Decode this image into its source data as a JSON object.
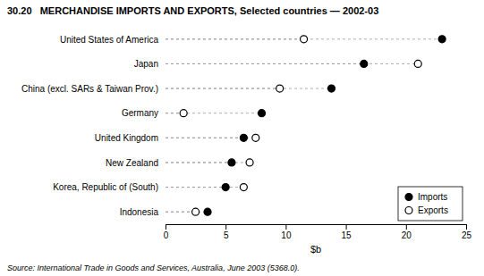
{
  "chart_data": {
    "type": "dot",
    "title": "30.20   MERCHANDISE IMPORTS AND EXPORTS, Selected countries — 2002-03",
    "categories": [
      "United States of America",
      "Japan",
      "China (excl. SARs & Taiwan Prov.)",
      "Germany",
      "United Kingdom",
      "New Zealand",
      "Korea, Republic of (South)",
      "Indonesia"
    ],
    "series": [
      {
        "name": "Imports",
        "color": "#000000",
        "marker": "filled",
        "values": [
          23.0,
          16.5,
          13.8,
          8.0,
          6.5,
          5.5,
          5.0,
          3.5
        ]
      },
      {
        "name": "Exports",
        "color": "#000000",
        "marker": "open",
        "values": [
          11.5,
          21.0,
          9.5,
          1.5,
          7.5,
          7.0,
          6.5,
          2.5
        ]
      }
    ],
    "orientation": "horizontal",
    "line_style": "dashed",
    "color": "#999999",
    "xlabel": "$b",
    "xlim": [
      0,
      25
    ],
    "xticks": [
      0,
      5,
      10,
      15,
      20,
      25
    ],
    "grid": false,
    "legend": "lower right",
    "source": "Source: International Trade in Goods and Services, Australia, June 2003 (5368.0)."
  }
}
